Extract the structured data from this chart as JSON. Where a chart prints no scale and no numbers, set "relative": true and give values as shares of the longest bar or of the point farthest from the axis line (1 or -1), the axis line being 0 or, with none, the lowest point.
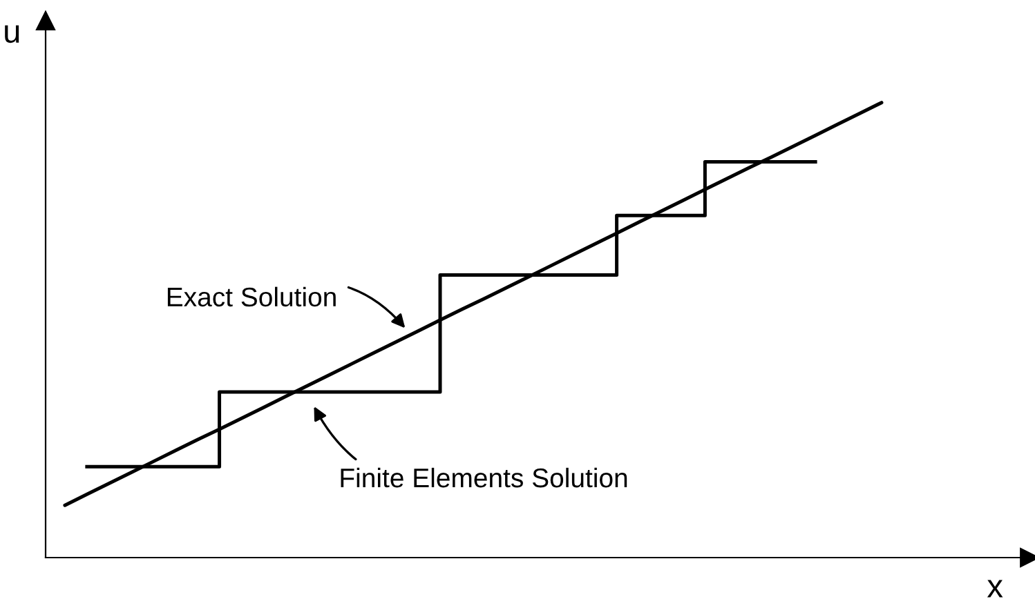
{
  "chart_data": {
    "type": "line",
    "relative": true,
    "xlabel": "x",
    "ylabel": "u",
    "categories": [
      null,
      null,
      null,
      null,
      null,
      null,
      null,
      null,
      null,
      null,
      null,
      null,
      null,
      null,
      null,
      null,
      null,
      null,
      null,
      null,
      null,
      null,
      null,
      null,
      null,
      null,
      null,
      null,
      null,
      null,
      null,
      null,
      null,
      null,
      null,
      null,
      null,
      null
    ],
    "series": [
      {
        "color": "#000000",
        "values": [
          0.115,
          0.139,
          0.163,
          0.187,
          0.211,
          0.235,
          0.259,
          0.282,
          0.306,
          0.33,
          0.354,
          0.378,
          0.402,
          0.426,
          0.45,
          0.474,
          0.498,
          0.522,
          0.546,
          0.569,
          0.593,
          0.617,
          0.641,
          0.665,
          0.689,
          0.713,
          0.737,
          0.761,
          0.785,
          0.809,
          0.833,
          0.857,
          0.88,
          0.904,
          0.928,
          0.952,
          0.976,
          1.0
        ]
      },
      {
        "type": "step",
        "color": "#000000",
        "values": [
          null,
          0.2,
          0.2,
          0.2,
          0.2,
          0.2,
          0.2,
          0.364,
          0.364,
          0.364,
          0.364,
          0.364,
          0.364,
          0.364,
          0.364,
          0.364,
          0.364,
          0.621,
          0.621,
          0.621,
          0.621,
          0.621,
          0.621,
          0.621,
          0.621,
          0.752,
          0.752,
          0.752,
          0.752,
          0.87,
          0.87,
          0.87,
          0.87,
          0.87,
          0.87,
          null,
          null,
          null
        ]
      }
    ],
    "annotations": [
      "Exact Solution",
      "Finite Elements Solution"
    ]
  }
}
